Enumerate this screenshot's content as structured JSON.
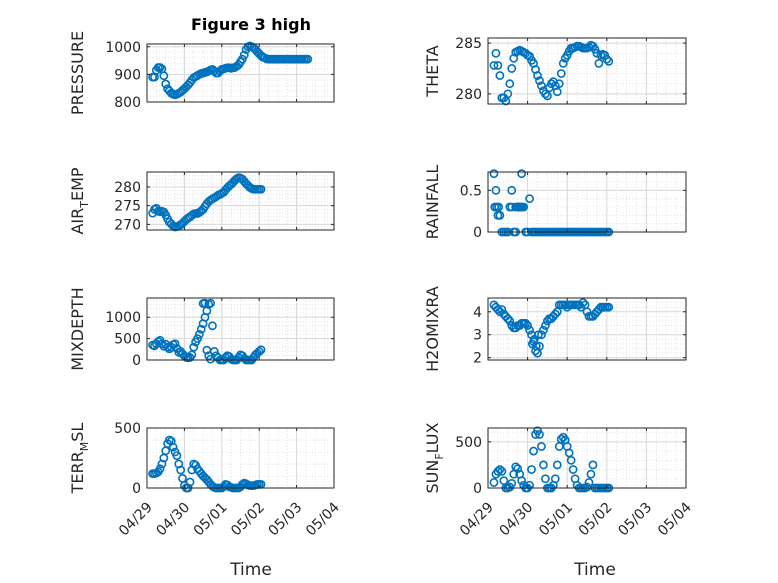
{
  "figure": {
    "title": "Figure 3 high",
    "xlabel": "Time",
    "marker_color": "#0072BD",
    "xticks": [
      "04/29",
      "04/30",
      "05/01",
      "05/02",
      "05/03",
      "05/04"
    ]
  },
  "chart_data": [
    {
      "type": "scatter",
      "id": "pressure",
      "ylabel_main": "PRESSURE",
      "ylabel_sub": "",
      "ylabel_tail": "",
      "ylim": [
        800,
        1010
      ],
      "yticks": [
        800,
        900,
        1000
      ],
      "x": [
        0.15,
        0.2,
        0.25,
        0.3,
        0.35,
        0.4,
        0.45,
        0.5,
        0.55,
        0.6,
        0.65,
        0.7,
        0.75,
        0.8,
        0.85,
        0.9,
        0.95,
        1.0,
        1.05,
        1.1,
        1.15,
        1.2,
        1.25,
        1.3,
        1.35,
        1.4,
        1.45,
        1.5,
        1.55,
        1.6,
        1.65,
        1.7,
        1.75,
        1.8,
        1.85,
        1.9,
        1.95,
        2.0,
        2.05,
        2.1,
        2.15,
        2.2,
        2.25,
        2.3,
        2.35,
        2.4,
        2.45,
        2.5,
        2.55,
        2.6,
        2.65,
        2.7,
        2.75,
        2.8,
        2.85,
        2.9,
        2.95,
        3.0,
        3.05,
        3.1,
        3.15,
        3.2,
        3.25,
        3.3,
        3.35,
        3.4,
        3.45,
        3.5,
        3.55,
        3.6,
        3.65,
        3.7,
        3.75,
        3.8,
        3.85,
        3.9,
        3.95,
        4.0,
        4.05,
        4.1,
        4.15,
        4.2,
        4.25,
        4.3
      ],
      "y": [
        890,
        890,
        915,
        925,
        925,
        920,
        895,
        865,
        848,
        840,
        832,
        828,
        826,
        828,
        832,
        836,
        842,
        848,
        855,
        862,
        870,
        880,
        888,
        892,
        896,
        900,
        903,
        905,
        907,
        909,
        912,
        916,
        918,
        912,
        905,
        905,
        912,
        918,
        920,
        922,
        924,
        924,
        922,
        924,
        925,
        930,
        935,
        945,
        955,
        970,
        990,
        1000,
        1003,
        1000,
        996,
        990,
        982,
        975,
        968,
        962,
        960,
        956,
        955,
        955,
        955,
        955,
        955,
        955,
        955,
        955,
        955,
        955,
        955,
        955,
        955,
        955,
        955,
        955,
        955,
        955,
        955,
        955,
        955,
        955
      ]
    },
    {
      "type": "scatter",
      "id": "theta",
      "ylabel_main": "THETA",
      "ylabel_sub": "",
      "ylabel_tail": "",
      "ylim": [
        279,
        285.5
      ],
      "yticks": [
        280,
        285
      ],
      "x": [
        0.15,
        0.2,
        0.25,
        0.3,
        0.35,
        0.4,
        0.45,
        0.5,
        0.55,
        0.6,
        0.65,
        0.7,
        0.75,
        0.8,
        0.85,
        0.9,
        0.95,
        1.0,
        1.05,
        1.1,
        1.15,
        1.2,
        1.25,
        1.3,
        1.35,
        1.4,
        1.45,
        1.5,
        1.55,
        1.6,
        1.65,
        1.7,
        1.75,
        1.8,
        1.85,
        1.9,
        1.95,
        2.0,
        2.05,
        2.1,
        2.15,
        2.2,
        2.25,
        2.3,
        2.35,
        2.4,
        2.45,
        2.5,
        2.55,
        2.6,
        2.65,
        2.7,
        2.75,
        2.8,
        2.85,
        2.9,
        2.95,
        3.0,
        3.05
      ],
      "y": [
        282.8,
        284.0,
        282.8,
        281.8,
        279.6,
        279.6,
        279.3,
        280.0,
        281.0,
        282.5,
        283.5,
        284.1,
        284.2,
        284.3,
        284.2,
        284.1,
        284.0,
        283.8,
        283.7,
        283.3,
        283.0,
        282.4,
        281.8,
        281.3,
        280.8,
        280.3,
        280.0,
        279.8,
        280.6,
        281.0,
        281.2,
        280.8,
        280.2,
        281.0,
        282.0,
        283.0,
        283.5,
        283.8,
        284.2,
        284.5,
        284.5,
        284.6,
        284.7,
        284.7,
        284.6,
        284.5,
        284.5,
        284.5,
        284.6,
        284.8,
        284.7,
        284.4,
        284.0,
        283.0,
        283.8,
        283.9,
        283.8,
        283.4,
        283.2
      ]
    },
    {
      "type": "scatter",
      "id": "air_temp",
      "ylabel_main": "AIR",
      "ylabel_sub": "T",
      "ylabel_tail": "EMP",
      "ylim": [
        268.5,
        284
      ],
      "yticks": [
        270,
        275,
        280
      ],
      "x": [
        0.15,
        0.2,
        0.25,
        0.3,
        0.35,
        0.4,
        0.45,
        0.5,
        0.55,
        0.6,
        0.65,
        0.7,
        0.75,
        0.8,
        0.85,
        0.9,
        0.95,
        1.0,
        1.05,
        1.1,
        1.15,
        1.2,
        1.25,
        1.3,
        1.35,
        1.4,
        1.45,
        1.5,
        1.55,
        1.6,
        1.65,
        1.7,
        1.75,
        1.8,
        1.85,
        1.9,
        1.95,
        2.0,
        2.05,
        2.1,
        2.15,
        2.2,
        2.25,
        2.3,
        2.35,
        2.4,
        2.45,
        2.5,
        2.55,
        2.6,
        2.65,
        2.7,
        2.75,
        2.8,
        2.85,
        2.9,
        2.95,
        3.0,
        3.05
      ],
      "y": [
        273.0,
        274.0,
        274.3,
        273.5,
        273.4,
        273.5,
        273.3,
        272.5,
        271.5,
        270.6,
        270.1,
        269.6,
        269.3,
        269.4,
        269.6,
        269.9,
        270.3,
        270.8,
        271.3,
        271.7,
        272.0,
        272.4,
        272.8,
        272.9,
        272.9,
        273.2,
        273.6,
        274.0,
        274.8,
        275.5,
        276.1,
        276.5,
        276.8,
        277.1,
        277.4,
        277.8,
        278.0,
        278.3,
        278.6,
        279.2,
        279.8,
        280.3,
        280.7,
        281.2,
        281.8,
        282.2,
        282.5,
        282.4,
        282.1,
        281.5,
        280.9,
        280.4,
        279.9,
        279.6,
        279.4,
        279.4,
        279.4,
        279.4,
        279.4
      ]
    },
    {
      "type": "scatter",
      "id": "rainfall",
      "ylabel_main": "RAINFALL",
      "ylabel_sub": "",
      "ylabel_tail": "",
      "ylim": [
        0,
        0.72
      ],
      "yticks": [
        0,
        0.5
      ],
      "x": [
        0.15,
        0.2,
        0.25,
        0.3,
        0.35,
        0.4,
        0.45,
        0.5,
        0.55,
        0.6,
        0.65,
        0.7,
        0.75,
        0.8,
        0.85,
        0.9,
        0.95,
        1.0,
        1.05,
        1.1,
        1.15,
        1.2,
        1.25,
        1.3,
        1.35,
        1.4,
        1.45,
        1.5,
        1.55,
        1.6,
        1.65,
        1.7,
        1.75,
        1.8,
        1.85,
        1.9,
        1.95,
        2.0,
        2.05,
        2.1,
        2.15,
        2.2,
        2.25,
        2.3,
        2.35,
        2.4,
        2.45,
        2.5,
        2.55,
        2.6,
        2.65,
        2.7,
        2.75,
        2.8,
        2.85,
        2.9,
        2.95,
        3.0,
        3.05,
        0.17,
        0.22,
        0.27,
        0.6,
        0.7,
        0.75,
        0.78,
        0.8,
        0.83,
        0.86
      ],
      "y": [
        0.7,
        0.5,
        0.2,
        0.2,
        0.0,
        0.0,
        0.0,
        0.0,
        0.3,
        0.5,
        0.0,
        0.0,
        0.3,
        0.3,
        0.7,
        0.3,
        0.0,
        0.0,
        0.4,
        0.0,
        0.0,
        0.0,
        0.0,
        0.0,
        0.0,
        0.0,
        0.0,
        0.0,
        0.0,
        0.0,
        0.0,
        0.0,
        0.0,
        0.0,
        0.0,
        0.0,
        0.0,
        0.0,
        0.0,
        0.0,
        0.0,
        0.0,
        0.0,
        0.0,
        0.0,
        0.0,
        0.0,
        0.0,
        0.0,
        0.0,
        0.0,
        0.0,
        0.0,
        0.0,
        0.0,
        0.0,
        0.0,
        0.0,
        0.0,
        0.3,
        0.3,
        0.3,
        0.3,
        0.3,
        0.3,
        0.3,
        0.3,
        0.3,
        0.3
      ]
    },
    {
      "type": "scatter",
      "id": "mixdepth",
      "ylabel_main": "MIXDEPTH",
      "ylabel_sub": "",
      "ylabel_tail": "",
      "ylim": [
        0,
        1450
      ],
      "yticks": [
        0,
        500,
        1000
      ],
      "x": [
        0.15,
        0.2,
        0.25,
        0.3,
        0.35,
        0.4,
        0.45,
        0.5,
        0.55,
        0.6,
        0.65,
        0.7,
        0.75,
        0.8,
        0.85,
        0.9,
        0.95,
        1.0,
        1.05,
        1.1,
        1.15,
        1.2,
        1.25,
        1.3,
        1.35,
        1.4,
        1.45,
        1.5,
        1.55,
        1.6,
        1.65,
        1.7,
        1.75,
        1.8,
        1.85,
        1.9,
        1.95,
        2.0,
        2.05,
        2.1,
        2.15,
        2.2,
        2.25,
        2.3,
        2.35,
        2.4,
        2.45,
        2.5,
        2.55,
        2.6,
        2.65,
        2.7,
        2.75,
        2.8,
        2.85,
        2.9,
        2.95,
        3.0,
        3.05,
        1.5,
        1.55,
        1.6,
        1.65,
        1.7
      ],
      "y": [
        350,
        330,
        380,
        430,
        460,
        380,
        320,
        370,
        300,
        260,
        300,
        360,
        380,
        270,
        180,
        200,
        140,
        100,
        60,
        50,
        60,
        120,
        300,
        420,
        500,
        600,
        720,
        850,
        1000,
        1150,
        1300,
        1330,
        800,
        200,
        100,
        50,
        0,
        0,
        0,
        60,
        100,
        80,
        20,
        0,
        0,
        0,
        60,
        120,
        100,
        40,
        0,
        0,
        0,
        0,
        60,
        120,
        160,
        200,
        240,
        1320,
        1330,
        230,
        100,
        20
      ]
    },
    {
      "type": "scatter",
      "id": "h2omixra",
      "ylabel_main": "H2OMIXRA",
      "ylabel_sub": "",
      "ylabel_tail": "",
      "ylim": [
        1.9,
        4.6
      ],
      "yticks": [
        2,
        3,
        4
      ],
      "x": [
        0.15,
        0.2,
        0.25,
        0.3,
        0.35,
        0.4,
        0.45,
        0.5,
        0.55,
        0.6,
        0.65,
        0.7,
        0.75,
        0.8,
        0.85,
        0.9,
        0.95,
        1.0,
        1.05,
        1.1,
        1.15,
        1.2,
        1.25,
        1.3,
        1.35,
        1.4,
        1.45,
        1.5,
        1.55,
        1.6,
        1.65,
        1.7,
        1.75,
        1.8,
        1.85,
        1.9,
        1.95,
        2.0,
        2.05,
        2.1,
        2.15,
        2.2,
        2.25,
        2.3,
        2.35,
        2.4,
        2.45,
        2.5,
        2.55,
        2.6,
        2.65,
        2.7,
        2.75,
        2.8,
        2.85,
        2.9,
        2.95,
        3.0,
        3.05,
        1.12,
        1.17,
        1.22,
        1.27
      ],
      "y": [
        4.3,
        4.2,
        4.1,
        4.0,
        4.1,
        3.9,
        3.8,
        3.7,
        3.6,
        3.4,
        3.3,
        3.3,
        3.4,
        3.4,
        3.5,
        3.5,
        3.5,
        3.4,
        3.2,
        3.0,
        2.7,
        2.3,
        2.2,
        2.5,
        3.0,
        3.2,
        3.4,
        3.6,
        3.7,
        3.7,
        3.8,
        3.9,
        4.0,
        4.3,
        4.3,
        4.3,
        4.3,
        4.2,
        4.3,
        4.3,
        4.3,
        4.3,
        4.3,
        4.3,
        4.2,
        4.4,
        4.3,
        4.0,
        3.8,
        3.8,
        3.8,
        3.9,
        4.0,
        4.1,
        4.2,
        4.2,
        4.2,
        4.2,
        4.2,
        2.6,
        2.8,
        2.5,
        3.0
      ]
    },
    {
      "type": "scatter",
      "id": "terr_msl",
      "ylabel_main": "TERR",
      "ylabel_sub": "M",
      "ylabel_tail": "SL",
      "ylim": [
        0,
        500
      ],
      "yticks": [
        0,
        500
      ],
      "x": [
        0.15,
        0.2,
        0.25,
        0.3,
        0.35,
        0.4,
        0.45,
        0.5,
        0.55,
        0.6,
        0.65,
        0.7,
        0.75,
        0.8,
        0.85,
        0.9,
        0.95,
        1.0,
        1.05,
        1.1,
        1.15,
        1.2,
        1.25,
        1.3,
        1.35,
        1.4,
        1.45,
        1.5,
        1.55,
        1.6,
        1.65,
        1.7,
        1.75,
        1.8,
        1.85,
        1.9,
        1.95,
        2.0,
        2.05,
        2.1,
        2.15,
        2.2,
        2.25,
        2.3,
        2.35,
        2.4,
        2.45,
        2.5,
        2.55,
        2.6,
        2.65,
        2.7,
        2.75,
        2.8,
        2.85,
        2.9,
        2.95,
        3.0,
        3.05
      ],
      "y": [
        120,
        120,
        125,
        135,
        160,
        200,
        250,
        310,
        370,
        400,
        390,
        340,
        300,
        270,
        200,
        150,
        80,
        20,
        0,
        0,
        50,
        150,
        200,
        190,
        160,
        140,
        120,
        100,
        85,
        70,
        50,
        30,
        15,
        5,
        0,
        0,
        0,
        0,
        10,
        30,
        25,
        10,
        5,
        0,
        0,
        0,
        0,
        10,
        30,
        40,
        35,
        25,
        20,
        20,
        20,
        25,
        30,
        30,
        30
      ]
    },
    {
      "type": "scatter",
      "id": "sun_flux",
      "ylabel_main": "SUN",
      "ylabel_sub": "F",
      "ylabel_tail": "LUX",
      "ylim": [
        0,
        650
      ],
      "yticks": [
        0,
        500
      ],
      "x": [
        0.15,
        0.2,
        0.25,
        0.3,
        0.35,
        0.4,
        0.45,
        0.5,
        0.55,
        0.6,
        0.65,
        0.7,
        0.75,
        0.8,
        0.85,
        0.9,
        0.95,
        1.0,
        1.05,
        1.1,
        1.15,
        1.2,
        1.25,
        1.3,
        1.35,
        1.4,
        1.45,
        1.5,
        1.55,
        1.6,
        1.65,
        1.7,
        1.75,
        1.8,
        1.85,
        1.9,
        1.95,
        2.0,
        2.05,
        2.1,
        2.15,
        2.2,
        2.25,
        2.3,
        2.35,
        2.4,
        2.45,
        2.5,
        2.55,
        2.6,
        2.65,
        2.7,
        2.75,
        2.8,
        2.85,
        2.9,
        2.95,
        3.0,
        3.05
      ],
      "y": [
        60,
        150,
        180,
        200,
        180,
        80,
        0,
        0,
        10,
        50,
        150,
        230,
        210,
        150,
        80,
        30,
        0,
        0,
        30,
        200,
        400,
        580,
        620,
        580,
        450,
        250,
        100,
        0,
        0,
        0,
        30,
        100,
        250,
        450,
        530,
        550,
        520,
        450,
        380,
        300,
        200,
        100,
        30,
        0,
        0,
        0,
        0,
        10,
        60,
        150,
        250,
        0,
        0,
        0,
        0,
        0,
        0,
        0,
        0
      ]
    }
  ]
}
